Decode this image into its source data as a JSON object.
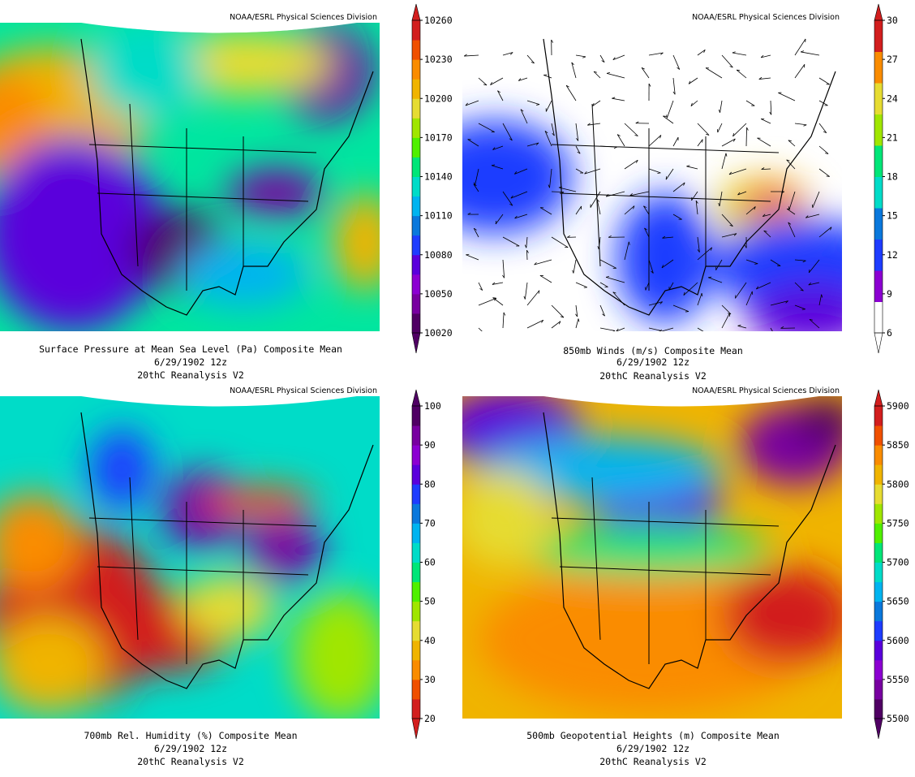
{
  "panels": [
    {
      "credit": "NOAA/ESRL Physical Sciences Division",
      "caption": [
        "Surface Pressure at Mean Sea Level (Pa)   Composite Mean",
        "6/29/1902 12z",
        "20thC Reanalysis V2"
      ],
      "colorbar": {
        "labels": [
          10260,
          10230,
          10200,
          10170,
          10140,
          10110,
          10080,
          10050,
          10020
        ],
        "colors": [
          "#500064",
          "#7800a0",
          "#8c00d2",
          "#5a00dc",
          "#1e3cff",
          "#0a78dc",
          "#00b4f0",
          "#00dcc8",
          "#00e678",
          "#50f000",
          "#a0e600",
          "#e6dc32",
          "#f0b400",
          "#fa8c00",
          "#f05000",
          "#d21e1e"
        ]
      }
    },
    {
      "credit": "NOAA/ESRL Physical Sciences Division",
      "caption": [
        "850mb Winds (m/s)   Composite Mean",
        "6/29/1902 12z",
        "20thC Reanalysis V2"
      ],
      "colorbar": {
        "labels": [
          30,
          27,
          24,
          21,
          18,
          15,
          12,
          9,
          6
        ],
        "colors": [
          "#ffffff",
          "#8c00d2",
          "#1e3cff",
          "#0a78dc",
          "#00dcc8",
          "#00e678",
          "#a0e600",
          "#e6dc32",
          "#fa8c00",
          "#d21e1e"
        ]
      }
    },
    {
      "credit": "NOAA/ESRL Physical Sciences Division",
      "caption": [
        "700mb Rel. Humidity (%)   Composite Mean",
        "6/29/1902 12z",
        "20thC Reanalysis V2"
      ],
      "colorbar": {
        "labels": [
          100,
          90,
          80,
          70,
          60,
          50,
          40,
          30,
          20
        ],
        "colors": [
          "#d21e1e",
          "#f05000",
          "#fa8c00",
          "#f0b400",
          "#e6dc32",
          "#a0e600",
          "#50f000",
          "#00e678",
          "#00dcc8",
          "#00b4f0",
          "#0a78dc",
          "#1e3cff",
          "#5a00dc",
          "#8c00d2",
          "#7800a0",
          "#500064"
        ]
      }
    },
    {
      "credit": "NOAA/ESRL Physical Sciences Division",
      "caption": [
        "500mb Geopotential Heights (m)   Composite Mean",
        "6/29/1902 12z",
        "20thC Reanalysis V2"
      ],
      "colorbar": {
        "labels": [
          5900,
          5850,
          5800,
          5750,
          5700,
          5650,
          5600,
          5550,
          5500
        ],
        "colors": [
          "#500064",
          "#7800a0",
          "#8c00d2",
          "#5a00dc",
          "#1e3cff",
          "#0a78dc",
          "#00b4f0",
          "#00dcc8",
          "#00e678",
          "#50f000",
          "#a0e600",
          "#e6dc32",
          "#f0b400",
          "#fa8c00",
          "#f05000",
          "#d21e1e"
        ]
      }
    }
  ]
}
